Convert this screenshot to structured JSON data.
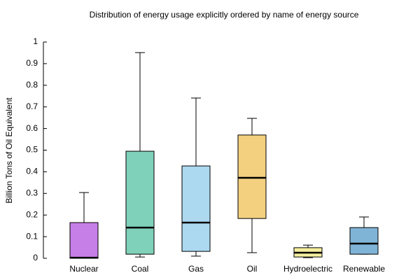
{
  "chart_data": {
    "type": "box",
    "title": "Distribution of energy usage explicitly ordered by name of energy source",
    "ylabel": "Billion Tons of Oil Equivalent",
    "categories": [
      "Nuclear",
      "Coal",
      "Gas",
      "Oil",
      "Hydroelectric",
      "Renewable"
    ],
    "boxes": [
      {
        "min": 0,
        "q1": 0,
        "median": 0.003,
        "q3": 0.165,
        "max": 0.304,
        "color": "#c77fe8"
      },
      {
        "min": 0.006,
        "q1": 0.019,
        "median": 0.142,
        "q3": 0.495,
        "max": 0.951,
        "color": "#7fd1b9"
      },
      {
        "min": 0.01,
        "q1": 0.032,
        "median": 0.165,
        "q3": 0.427,
        "max": 0.741,
        "color": "#acd8f0"
      },
      {
        "min": 0.026,
        "q1": 0.184,
        "median": 0.372,
        "q3": 0.57,
        "max": 0.647,
        "color": "#f2d080"
      },
      {
        "min": 0.003,
        "q1": 0.006,
        "median": 0.026,
        "q3": 0.049,
        "max": 0.061,
        "color": "#f5ee9e"
      },
      {
        "min": 0.019,
        "q1": 0.019,
        "median": 0.068,
        "q3": 0.142,
        "max": 0.191,
        "color": "#7fb4d6"
      }
    ],
    "ylim": [
      0,
      1
    ],
    "yticks": [
      0,
      0.1,
      0.2,
      0.3,
      0.4,
      0.5,
      0.6,
      0.7,
      0.8,
      0.9,
      1
    ]
  }
}
